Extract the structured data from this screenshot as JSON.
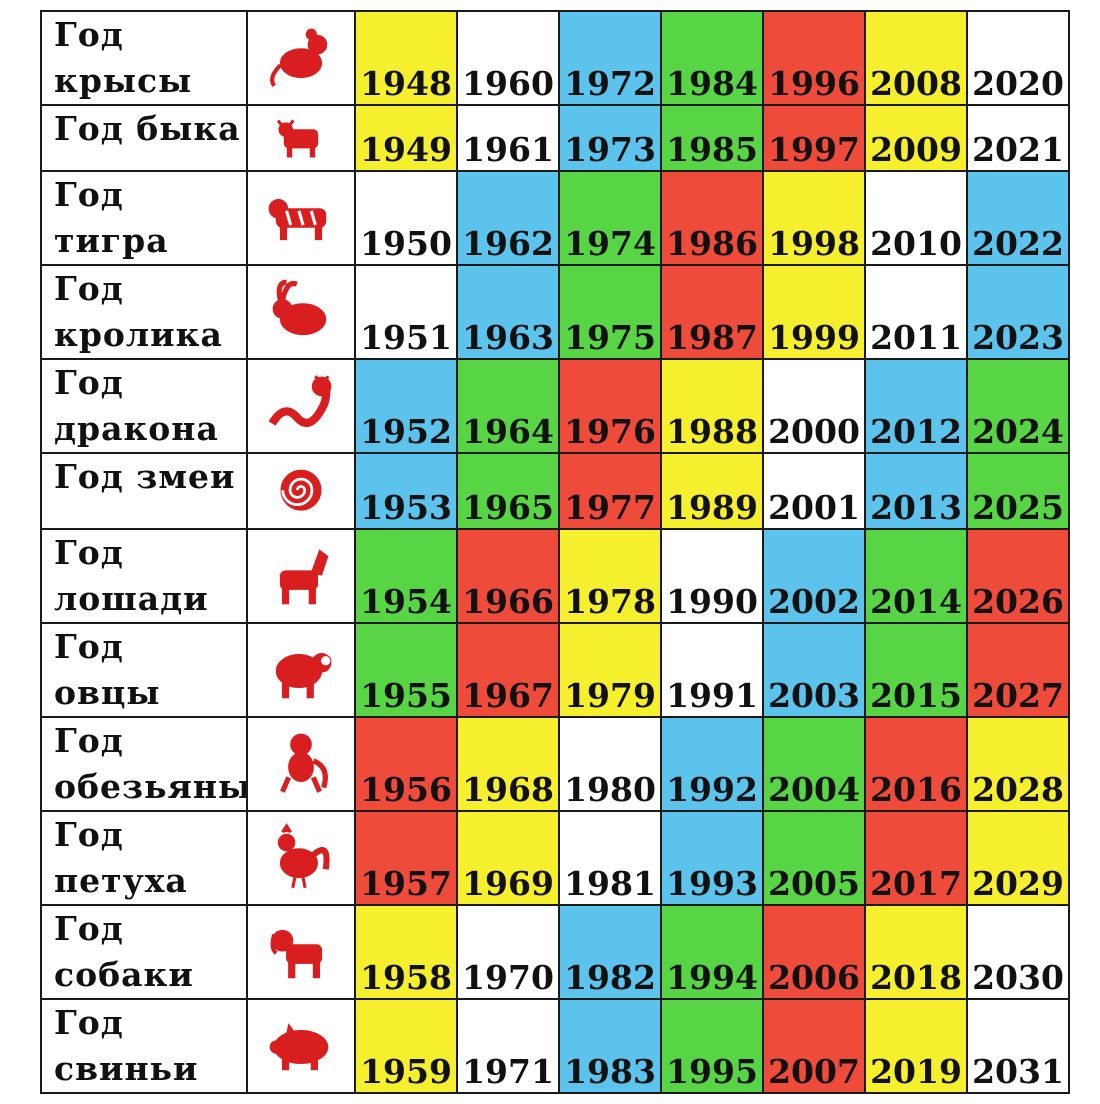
{
  "colors": {
    "yellow": "#f5ef2e",
    "blue": "#5cc4ec",
    "green": "#57d545",
    "red": "#ef4b3a",
    "white": "#ffffff",
    "icon": "#d81e1e"
  },
  "rows": [
    {
      "name": "Год\nкрысы",
      "icon": "rat-icon",
      "years": [
        "1948",
        "1960",
        "1972",
        "1984",
        "1996",
        "2008",
        "2020"
      ],
      "colors": [
        "yellow",
        "white",
        "blue",
        "green",
        "red",
        "yellow",
        "white"
      ]
    },
    {
      "name": "Год быка",
      "icon": "ox-icon",
      "years": [
        "1949",
        "1961",
        "1973",
        "1985",
        "1997",
        "2009",
        "2021"
      ],
      "colors": [
        "yellow",
        "white",
        "blue",
        "green",
        "red",
        "yellow",
        "white"
      ]
    },
    {
      "name": "Год\nтигра",
      "icon": "tiger-icon",
      "years": [
        "1950",
        "1962",
        "1974",
        "1986",
        "1998",
        "2010",
        "2022"
      ],
      "colors": [
        "white",
        "blue",
        "green",
        "red",
        "yellow",
        "white",
        "blue"
      ]
    },
    {
      "name": "Год\nкролика",
      "icon": "rabbit-icon",
      "years": [
        "1951",
        "1963",
        "1975",
        "1987",
        "1999",
        "2011",
        "2023"
      ],
      "colors": [
        "white",
        "blue",
        "green",
        "red",
        "yellow",
        "white",
        "blue"
      ]
    },
    {
      "name": "Год\nдракона",
      "icon": "dragon-icon",
      "years": [
        "1952",
        "1964",
        "1976",
        "1988",
        "2000",
        "2012",
        "2024"
      ],
      "colors": [
        "blue",
        "green",
        "red",
        "yellow",
        "white",
        "blue",
        "green"
      ]
    },
    {
      "name": "Год змеи",
      "icon": "snake-icon",
      "years": [
        "1953",
        "1965",
        "1977",
        "1989",
        "2001",
        "2013",
        "2025"
      ],
      "colors": [
        "blue",
        "green",
        "red",
        "yellow",
        "white",
        "blue",
        "green"
      ]
    },
    {
      "name": "Год\nлошади",
      "icon": "horse-icon",
      "years": [
        "1954",
        "1966",
        "1978",
        "1990",
        "2002",
        "2014",
        "2026"
      ],
      "colors": [
        "green",
        "red",
        "yellow",
        "white",
        "blue",
        "green",
        "red"
      ]
    },
    {
      "name": "Год\nовцы",
      "icon": "sheep-icon",
      "years": [
        "1955",
        "1967",
        "1979",
        "1991",
        "2003",
        "2015",
        "2027"
      ],
      "colors": [
        "green",
        "red",
        "yellow",
        "white",
        "blue",
        "green",
        "red"
      ]
    },
    {
      "name": "Год\nобезьяны",
      "icon": "monkey-icon",
      "years": [
        "1956",
        "1968",
        "1980",
        "1992",
        "2004",
        "2016",
        "2028"
      ],
      "colors": [
        "red",
        "yellow",
        "white",
        "blue",
        "green",
        "red",
        "yellow"
      ]
    },
    {
      "name": "Год\nпетуха",
      "icon": "rooster-icon",
      "years": [
        "1957",
        "1969",
        "1981",
        "1993",
        "2005",
        "2017",
        "2029"
      ],
      "colors": [
        "red",
        "yellow",
        "white",
        "blue",
        "green",
        "red",
        "yellow"
      ]
    },
    {
      "name": "Год\nсобаки",
      "icon": "dog-icon",
      "years": [
        "1958",
        "1970",
        "1982",
        "1994",
        "2006",
        "2018",
        "2030"
      ],
      "colors": [
        "yellow",
        "white",
        "blue",
        "green",
        "red",
        "yellow",
        "white"
      ]
    },
    {
      "name": "Год\nсвиньи",
      "icon": "pig-icon",
      "years": [
        "1959",
        "1971",
        "1983",
        "1995",
        "2007",
        "2019",
        "2031"
      ],
      "colors": [
        "yellow",
        "white",
        "blue",
        "green",
        "red",
        "yellow",
        "white"
      ]
    }
  ]
}
